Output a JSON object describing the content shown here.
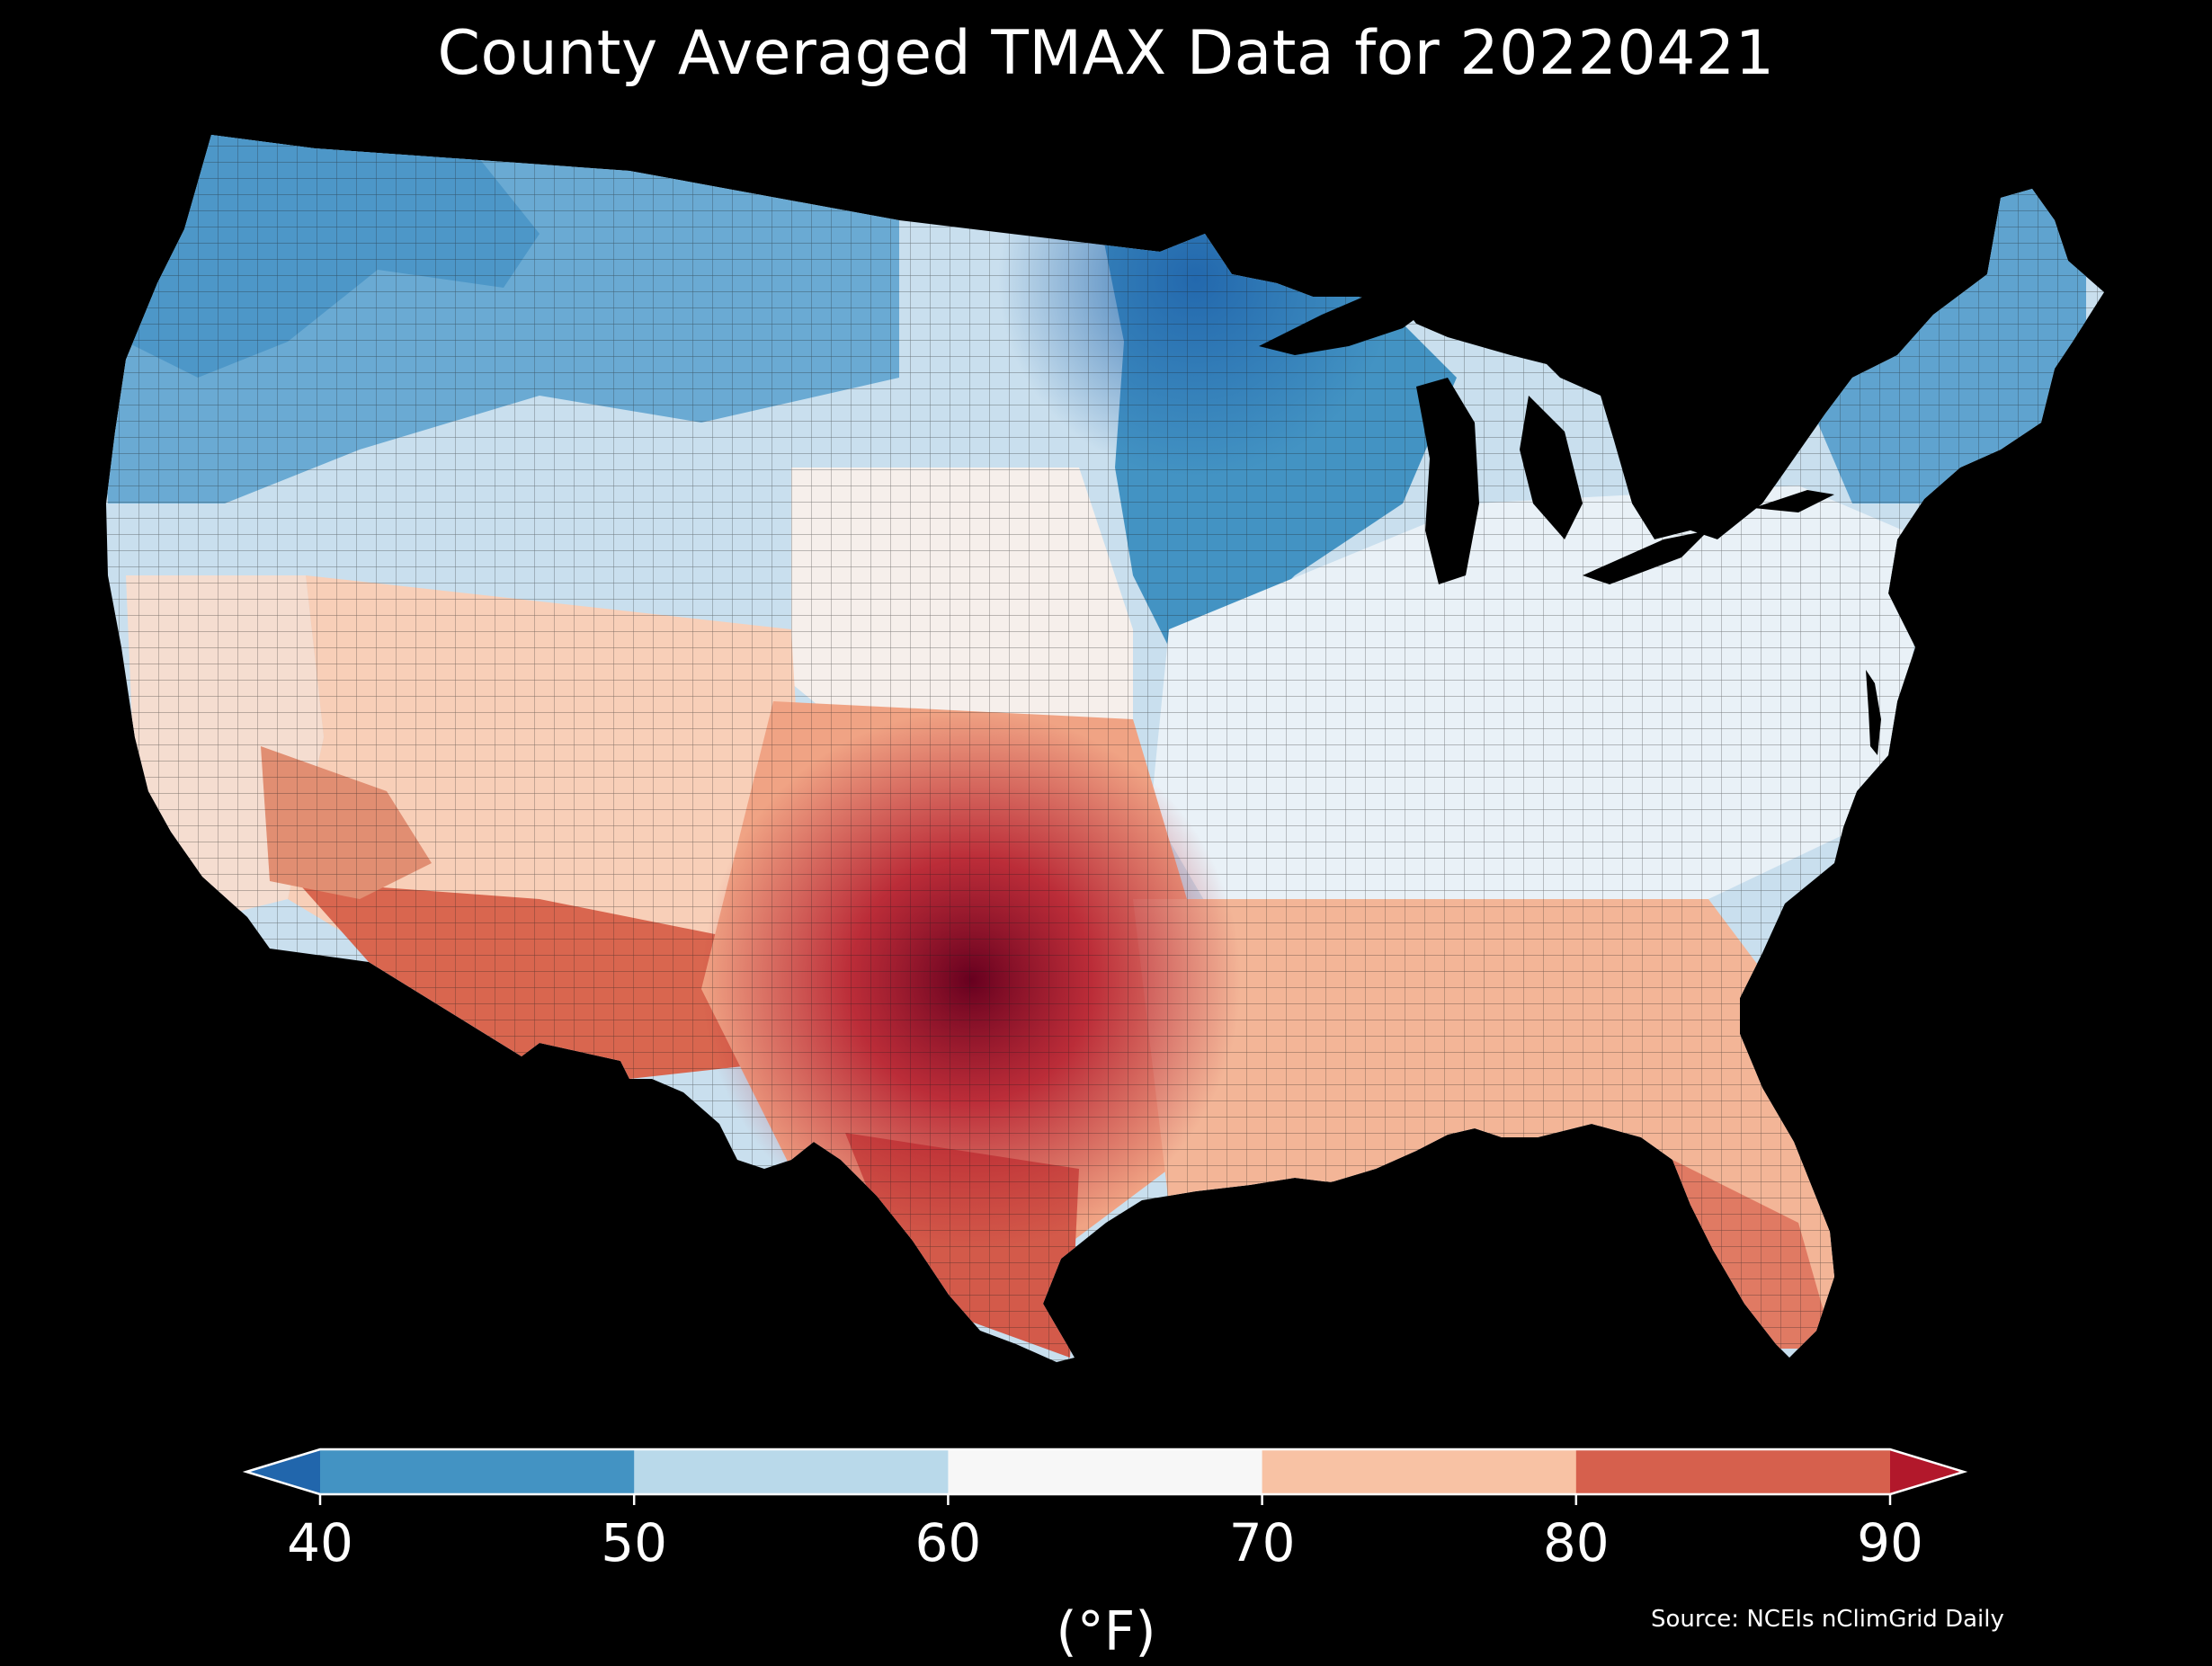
{
  "title": "County Averaged TMAX Data for 20220421",
  "map": {
    "region": "Contiguous United States",
    "level": "county",
    "variable": "TMAX",
    "unit": "°F",
    "background": "#000000",
    "county_border_color": "#222222"
  },
  "colorbar": {
    "label": "(°F)",
    "ticks": [
      "40",
      "50",
      "60",
      "70",
      "80",
      "90"
    ],
    "extend": "both",
    "under_color": "#2166ac",
    "bins": [
      {
        "from": 40,
        "to": 50,
        "color": "#4393c3"
      },
      {
        "from": 50,
        "to": 60,
        "color": "#b9d9ea"
      },
      {
        "from": 60,
        "to": 70,
        "color": "#f7f7f7"
      },
      {
        "from": 70,
        "to": 80,
        "color": "#f8c2a4"
      },
      {
        "from": 80,
        "to": 90,
        "color": "#d6604d"
      }
    ],
    "over_color": "#b2182b"
  },
  "source": "Source: NCEIs nClimGrid Daily"
}
